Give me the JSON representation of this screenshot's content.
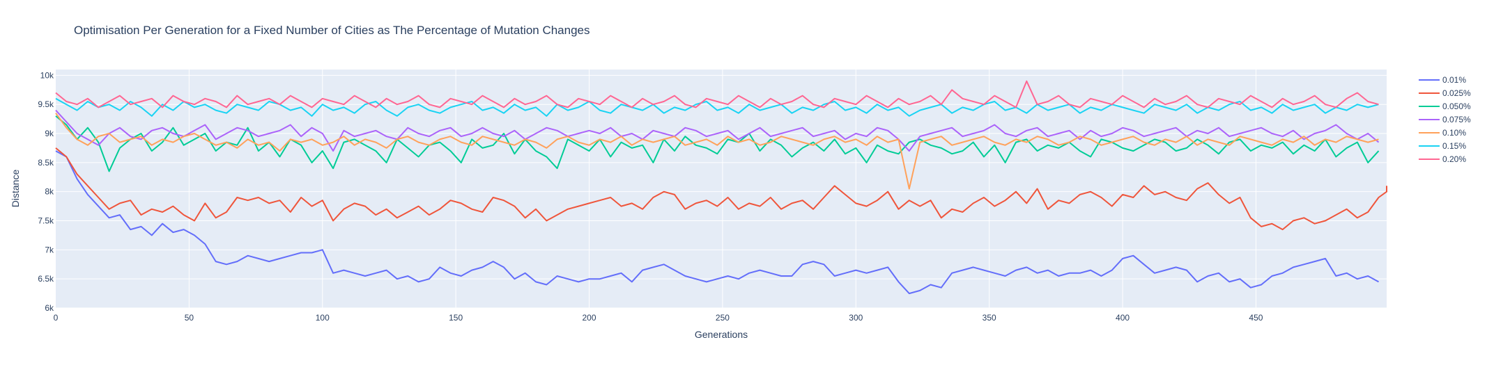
{
  "chart_data": {
    "type": "line",
    "title": "Optimisation Per Generation for a Fixed Number of Cities as The Percentage of Mutation Changes",
    "xlabel": "Generations",
    "ylabel": "Distance",
    "xlim": [
      0,
      499
    ],
    "ylim": [
      6000,
      10100
    ],
    "x_ticks": [
      0,
      50,
      100,
      150,
      200,
      250,
      300,
      350,
      400,
      450
    ],
    "x_tick_labels": [
      "0",
      "50",
      "100",
      "150",
      "200",
      "250",
      "300",
      "350",
      "400",
      "450"
    ],
    "y_ticks": [
      6000,
      6500,
      7000,
      7500,
      8000,
      8500,
      9000,
      9500,
      10000
    ],
    "y_tick_labels": [
      "6k",
      "6.5k",
      "7k",
      "7.5k",
      "8k",
      "8.5k",
      "9k",
      "9.5k",
      "10k"
    ],
    "grid": true,
    "legend_position": "right",
    "x_start": 0,
    "x_step": 4,
    "series": [
      {
        "name": "0.01%",
        "color": "#636efa",
        "values": [
          8700,
          8600,
          8220,
          7950,
          7750,
          7550,
          7600,
          7350,
          7400,
          7250,
          7450,
          7300,
          7350,
          7250,
          7100,
          6800,
          6750,
          6800,
          6900,
          6850,
          6800,
          6850,
          6900,
          6950,
          6950,
          7000,
          6600,
          6650,
          6600,
          6550,
          6600,
          6650,
          6500,
          6550,
          6450,
          6500,
          6700,
          6600,
          6550,
          6650,
          6700,
          6800,
          6700,
          6500,
          6600,
          6450,
          6400,
          6550,
          6500,
          6450,
          6500,
          6500,
          6550,
          6600,
          6450,
          6650,
          6700,
          6750,
          6650,
          6550,
          6500,
          6450,
          6500,
          6550,
          6500,
          6600,
          6650,
          6600,
          6550,
          6550,
          6750,
          6800,
          6750,
          6550,
          6600,
          6650,
          6600,
          6650,
          6700,
          6450,
          6250,
          6300,
          6400,
          6350,
          6600,
          6650,
          6700,
          6650,
          6600,
          6550,
          6650,
          6700,
          6600,
          6650,
          6550,
          6600,
          6600,
          6650,
          6550,
          6650,
          6850,
          6900,
          6750,
          6600,
          6650,
          6700,
          6650,
          6450,
          6550,
          6600,
          6450,
          6500,
          6350,
          6400,
          6550,
          6600,
          6700,
          6750,
          6800,
          6850,
          6550,
          6600,
          6500,
          6550,
          6450
        ]
      },
      {
        "name": "0.025%",
        "color": "#ef553b",
        "values": [
          8750,
          8600,
          8300,
          8100,
          7900,
          7700,
          7800,
          7850,
          7600,
          7700,
          7650,
          7750,
          7600,
          7500,
          7800,
          7550,
          7650,
          7900,
          7850,
          7900,
          7800,
          7850,
          7650,
          7900,
          7750,
          7850,
          7500,
          7700,
          7800,
          7750,
          7600,
          7700,
          7550,
          7650,
          7750,
          7600,
          7700,
          7850,
          7800,
          7700,
          7650,
          7900,
          7850,
          7750,
          7550,
          7700,
          7500,
          7600,
          7700,
          7750,
          7800,
          7850,
          7900,
          7750,
          7800,
          7700,
          7900,
          8000,
          7950,
          7700,
          7800,
          7850,
          7750,
          7900,
          7700,
          7800,
          7750,
          7900,
          7700,
          7800,
          7850,
          7700,
          7900,
          8100,
          7950,
          7800,
          7750,
          7850,
          8000,
          7700,
          7850,
          7750,
          7850,
          7550,
          7700,
          7650,
          7800,
          7900,
          7750,
          7850,
          8000,
          7800,
          8050,
          7700,
          7850,
          7800,
          7950,
          8000,
          7900,
          7750,
          7950,
          7900,
          8100,
          7950,
          8000,
          7900,
          7850,
          8050,
          8150,
          7950,
          7800,
          7900,
          7550,
          7400,
          7450,
          7350,
          7500,
          7550,
          7450,
          7500,
          7600,
          7700,
          7550,
          7650,
          7900,
          8000,
          8100
        ]
      },
      {
        "name": "0.050%",
        "color": "#00cc96",
        "values": [
          9300,
          9150,
          8900,
          9100,
          8850,
          8350,
          8750,
          8900,
          9000,
          8700,
          8850,
          9100,
          8800,
          8900,
          9000,
          8700,
          8850,
          8800,
          9100,
          8700,
          8850,
          8600,
          8900,
          8800,
          8500,
          8700,
          8400,
          8850,
          8900,
          8800,
          8700,
          8500,
          8900,
          8750,
          8600,
          8800,
          8850,
          8700,
          8500,
          8900,
          8750,
          8800,
          9000,
          8650,
          8900,
          8700,
          8600,
          8400,
          8900,
          8800,
          8700,
          8900,
          8600,
          8850,
          8750,
          8800,
          8500,
          8900,
          8700,
          8950,
          8800,
          8750,
          8650,
          8900,
          8850,
          9000,
          8700,
          8900,
          8800,
          8600,
          8750,
          8850,
          8700,
          8900,
          8650,
          8750,
          8500,
          8800,
          8700,
          8650,
          8850,
          8900,
          8800,
          8750,
          8650,
          8700,
          8850,
          8600,
          8800,
          8500,
          8850,
          8900,
          8700,
          8800,
          8750,
          8850,
          8700,
          8600,
          8900,
          8850,
          8750,
          8700,
          8800,
          8900,
          8850,
          8700,
          8750,
          8900,
          8800,
          8650,
          8850,
          8900,
          8700,
          8800,
          8750,
          8850,
          8650,
          8800,
          8700,
          8900,
          8600,
          8750,
          8850,
          8500,
          8700
        ]
      },
      {
        "name": "0.075%",
        "color": "#ab63fa",
        "values": [
          9400,
          9200,
          9000,
          8900,
          8800,
          9000,
          9100,
          8950,
          8900,
          9050,
          9100,
          9000,
          8950,
          9050,
          9150,
          8900,
          9000,
          9100,
          9050,
          8950,
          9000,
          9050,
          9150,
          8950,
          9100,
          9000,
          8700,
          9050,
          8950,
          9000,
          9050,
          8950,
          8900,
          9100,
          9000,
          8950,
          9050,
          9100,
          8950,
          9000,
          9100,
          9000,
          8950,
          9050,
          8900,
          9000,
          9100,
          9050,
          8950,
          9000,
          9050,
          9000,
          9100,
          8950,
          9000,
          8900,
          9050,
          9000,
          8950,
          9100,
          9050,
          8950,
          9000,
          9050,
          8900,
          9000,
          9100,
          8950,
          9000,
          9050,
          9100,
          8950,
          9000,
          9050,
          8900,
          9000,
          8950,
          9100,
          9050,
          8900,
          8700,
          8950,
          9000,
          9050,
          9100,
          8950,
          9000,
          9050,
          9150,
          9000,
          8950,
          9050,
          9100,
          8950,
          9000,
          9050,
          8900,
          9050,
          8950,
          9000,
          9100,
          9050,
          8950,
          9000,
          9050,
          9100,
          8950,
          9050,
          9000,
          9100,
          8950,
          9000,
          9050,
          9100,
          9000,
          8950,
          9050,
          8900,
          9000,
          9050,
          9150,
          9000,
          8900,
          9000,
          8850
        ]
      },
      {
        "name": "0.10%",
        "color": "#ffa15a",
        "values": [
          9350,
          9100,
          8900,
          8800,
          8950,
          9000,
          8850,
          8900,
          8950,
          8800,
          8900,
          8850,
          8950,
          9000,
          8900,
          8800,
          8850,
          8750,
          8900,
          8800,
          8850,
          8700,
          8900,
          8850,
          8900,
          8800,
          8850,
          8950,
          8800,
          8900,
          8850,
          8750,
          8900,
          8950,
          8850,
          8800,
          8900,
          8950,
          8850,
          8800,
          8950,
          8900,
          8850,
          8800,
          8900,
          8850,
          8750,
          8900,
          8950,
          8850,
          8800,
          8900,
          8850,
          8950,
          8800,
          8900,
          8850,
          8900,
          8950,
          8800,
          8850,
          8900,
          8800,
          8950,
          8850,
          8900,
          8800,
          8850,
          8950,
          8900,
          8850,
          8800,
          8900,
          8950,
          8850,
          8900,
          8800,
          8950,
          8850,
          8900,
          8050,
          8850,
          8900,
          8950,
          8800,
          8850,
          8900,
          8950,
          8850,
          8800,
          8900,
          8850,
          8950,
          8900,
          8800,
          8850,
          8950,
          8900,
          8800,
          8850,
          8900,
          8950,
          8850,
          8800,
          8900,
          8850,
          8950,
          8800,
          8900,
          8850,
          8800,
          8950,
          8900,
          8850,
          8800,
          8900,
          8850,
          8950,
          8800,
          8900,
          8850,
          8950,
          8900,
          8850,
          8900
        ]
      },
      {
        "name": "0.15%",
        "color": "#19d3f3",
        "values": [
          9600,
          9500,
          9400,
          9550,
          9450,
          9500,
          9400,
          9550,
          9450,
          9300,
          9500,
          9400,
          9550,
          9450,
          9500,
          9400,
          9350,
          9500,
          9450,
          9400,
          9550,
          9500,
          9400,
          9450,
          9300,
          9500,
          9400,
          9450,
          9350,
          9500,
          9550,
          9400,
          9300,
          9450,
          9500,
          9400,
          9350,
          9450,
          9500,
          9550,
          9400,
          9450,
          9350,
          9500,
          9400,
          9450,
          9300,
          9500,
          9400,
          9450,
          9550,
          9400,
          9350,
          9500,
          9450,
          9400,
          9500,
          9350,
          9450,
          9400,
          9500,
          9550,
          9400,
          9450,
          9350,
          9500,
          9400,
          9450,
          9500,
          9350,
          9450,
          9400,
          9500,
          9550,
          9400,
          9450,
          9350,
          9500,
          9400,
          9450,
          9300,
          9400,
          9450,
          9500,
          9350,
          9450,
          9400,
          9500,
          9550,
          9400,
          9450,
          9350,
          9500,
          9400,
          9450,
          9500,
          9350,
          9450,
          9400,
          9500,
          9450,
          9400,
          9350,
          9500,
          9450,
          9400,
          9500,
          9350,
          9450,
          9400,
          9500,
          9550,
          9400,
          9450,
          9350,
          9500,
          9400,
          9450,
          9500,
          9350,
          9450,
          9400,
          9500,
          9450,
          9500
        ]
      },
      {
        "name": "0.20%",
        "color": "#ff6692",
        "values": [
          9700,
          9550,
          9500,
          9600,
          9450,
          9550,
          9650,
          9500,
          9550,
          9600,
          9450,
          9650,
          9550,
          9500,
          9600,
          9550,
          9450,
          9650,
          9500,
          9550,
          9600,
          9500,
          9650,
          9550,
          9450,
          9600,
          9550,
          9500,
          9650,
          9550,
          9450,
          9600,
          9500,
          9550,
          9650,
          9500,
          9450,
          9600,
          9550,
          9500,
          9650,
          9550,
          9450,
          9600,
          9500,
          9550,
          9650,
          9500,
          9450,
          9600,
          9550,
          9500,
          9650,
          9550,
          9450,
          9600,
          9500,
          9550,
          9650,
          9500,
          9450,
          9600,
          9550,
          9500,
          9650,
          9550,
          9450,
          9600,
          9500,
          9550,
          9650,
          9500,
          9450,
          9600,
          9550,
          9500,
          9650,
          9550,
          9450,
          9600,
          9500,
          9550,
          9650,
          9500,
          9750,
          9600,
          9550,
          9500,
          9650,
          9550,
          9450,
          9900,
          9500,
          9550,
          9650,
          9500,
          9450,
          9600,
          9550,
          9500,
          9650,
          9550,
          9450,
          9600,
          9500,
          9550,
          9650,
          9500,
          9450,
          9600,
          9550,
          9500,
          9650,
          9550,
          9450,
          9600,
          9500,
          9550,
          9650,
          9500,
          9450,
          9600,
          9700,
          9550,
          9500
        ]
      }
    ]
  }
}
